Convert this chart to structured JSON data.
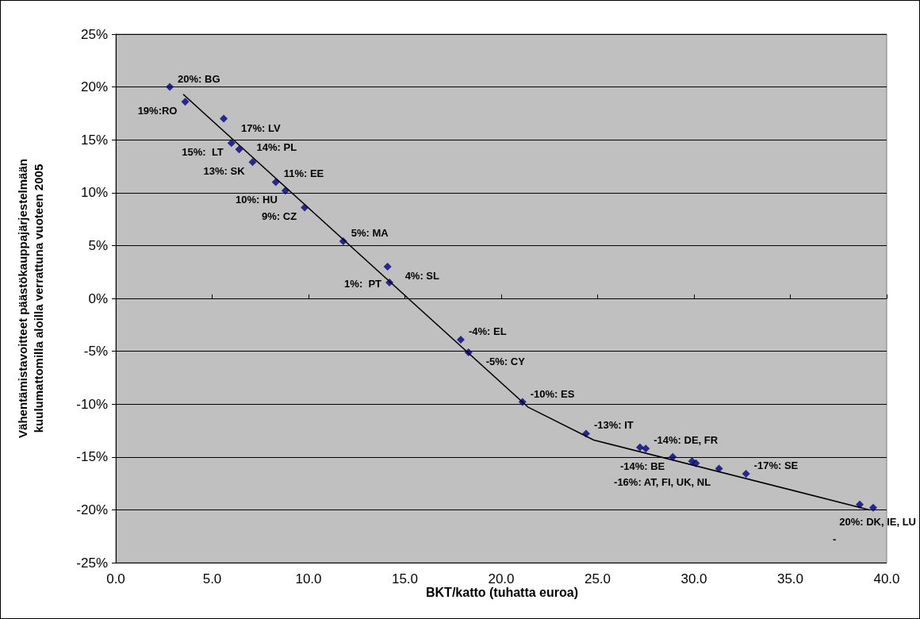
{
  "chart_data": {
    "type": "scatter",
    "xlabel": "BKT/katto (tuhatta euroa)",
    "ylabel": "Vähentämistavoitteet päästökauppajärjestelmään\nkuulumattomilla aloilla verrattuna vuoteen 2005",
    "xlim": [
      0,
      40
    ],
    "xticks": [
      {
        "value": 0,
        "label": "0.0"
      },
      {
        "value": 5,
        "label": "5.0"
      },
      {
        "value": 10,
        "label": "10.0"
      },
      {
        "value": 15,
        "label": "15.0"
      },
      {
        "value": 20,
        "label": "20.0"
      },
      {
        "value": 25,
        "label": "25.0"
      },
      {
        "value": 30,
        "label": "30.0"
      },
      {
        "value": 35,
        "label": "35.0"
      },
      {
        "value": 40,
        "label": "40.0"
      }
    ],
    "ylim": [
      -25,
      25
    ],
    "yticks": [
      {
        "value": -25,
        "label": "-25%"
      },
      {
        "value": -20,
        "label": "-20%"
      },
      {
        "value": -15,
        "label": "-15%"
      },
      {
        "value": -10,
        "label": "-10%"
      },
      {
        "value": -5,
        "label": "-5%"
      },
      {
        "value": 0,
        "label": "0%"
      },
      {
        "value": 5,
        "label": "5%"
      },
      {
        "value": 10,
        "label": "10%"
      },
      {
        "value": 15,
        "label": "15%"
      },
      {
        "value": 20,
        "label": "20%"
      },
      {
        "value": 25,
        "label": "25%"
      }
    ],
    "grid": "y",
    "marker": "diamond",
    "series": [
      {
        "color": "#000080",
        "x": [
          2.8,
          3.6,
          5.6,
          6.0,
          6.4,
          7.1,
          8.3,
          8.8,
          9.8,
          11.8,
          14.1,
          14.2,
          17.9,
          18.3,
          21.1,
          24.4,
          27.2,
          27.5,
          28.9,
          29.9,
          30.1,
          31.3,
          32.7,
          38.6,
          39.3
        ],
        "values": [
          20.0,
          18.6,
          17.0,
          14.7,
          14.1,
          12.9,
          11.0,
          10.2,
          8.6,
          5.4,
          3.0,
          1.5,
          -3.9,
          -5.1,
          -9.8,
          -12.8,
          -14.1,
          -14.2,
          -15.0,
          -15.4,
          -15.6,
          -16.1,
          -16.6,
          -19.5,
          -19.8
        ]
      },
      {
        "type": "line",
        "color": "#000000",
        "marker": "none",
        "line_style": "solid",
        "x": [
          3.5,
          21.4,
          24.8,
          39.1
        ],
        "values": [
          19.3,
          -10.3,
          -13.4,
          -20.0
        ]
      }
    ],
    "annotations": [
      {
        "text": "20%: BG",
        "x": 2.8,
        "y": 20.0
      },
      {
        "text": "19%:RO",
        "x": 3.6,
        "y": 18.6
      },
      {
        "text": "17%: LV",
        "x": 5.6,
        "y": 17.0
      },
      {
        "text": "15%:  LT",
        "x": 6.0,
        "y": 14.7
      },
      {
        "text": "14%: PL",
        "x": 6.4,
        "y": 14.1
      },
      {
        "text": "13%: SK",
        "x": 7.1,
        "y": 12.9
      },
      {
        "text": "11%: EE",
        "x": 8.3,
        "y": 11.0
      },
      {
        "text": "10%: HU",
        "x": 8.8,
        "y": 10.2
      },
      {
        "text": "9%: CZ",
        "x": 9.8,
        "y": 8.6
      },
      {
        "text": "5%: MA",
        "x": 11.8,
        "y": 5.4
      },
      {
        "text": "4%: SL",
        "x": 14.1,
        "y": 3.0
      },
      {
        "text": "1%:  PT",
        "x": 14.2,
        "y": 1.5
      },
      {
        "text": "-4%: EL",
        "x": 17.9,
        "y": -3.9
      },
      {
        "text": "-5%: CY",
        "x": 18.3,
        "y": -5.1
      },
      {
        "text": "-10%: ES",
        "x": 21.1,
        "y": -9.8
      },
      {
        "text": "-13%: IT",
        "x": 24.4,
        "y": -12.8
      },
      {
        "text": "-14%: DE, FR",
        "x": 27.5,
        "y": -14.2
      },
      {
        "text": "-14%: BE",
        "x": 28.9,
        "y": -15.0
      },
      {
        "text": "-16%: AT, FI, UK, NL",
        "x": 31.3,
        "y": -16.1
      },
      {
        "text": "-17%: SE",
        "x": 32.7,
        "y": -16.6
      },
      {
        "text": "20%: DK, IE, LU",
        "x": 39.3,
        "y": -19.8
      },
      "-"
    ]
  }
}
